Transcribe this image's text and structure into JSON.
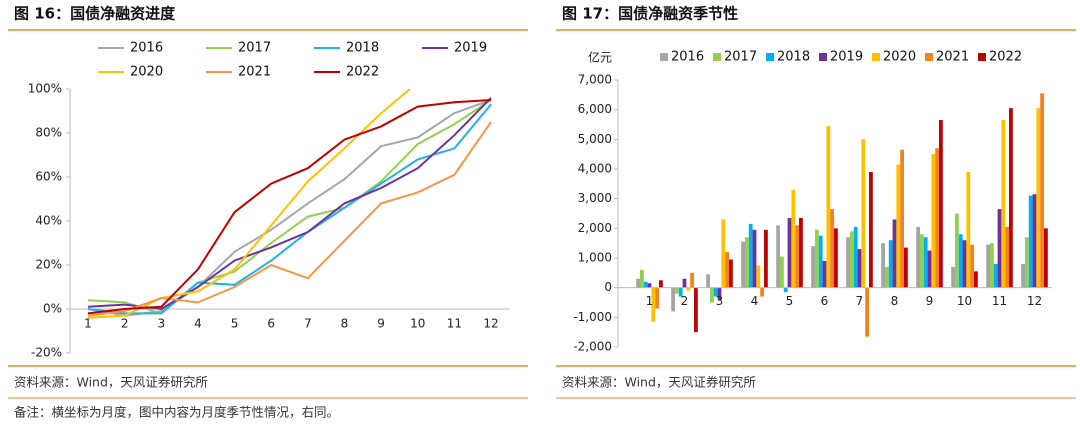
{
  "chart_data": [
    {
      "type": "line",
      "title": "图 16：国债净融资进度",
      "source": "资料来源：Wind，天风证券研究所",
      "categories": [
        "1",
        "2",
        "3",
        "4",
        "5",
        "6",
        "7",
        "8",
        "9",
        "10",
        "11",
        "12"
      ],
      "ylim": [
        -20,
        100
      ],
      "yticks": [
        {
          "value": -20,
          "label": "-20%"
        },
        {
          "value": 0,
          "label": "0%"
        },
        {
          "value": 20,
          "label": "20%"
        },
        {
          "value": 40,
          "label": "40%"
        },
        {
          "value": 60,
          "label": "60%"
        },
        {
          "value": 80,
          "label": "80%"
        },
        {
          "value": 100,
          "label": "100%"
        }
      ],
      "grid": false,
      "series": [
        {
          "name": "2016",
          "color": "#a6a6a6",
          "values": [
            0,
            -3,
            -1,
            10,
            26,
            36,
            48,
            59,
            74,
            78,
            89,
            95
          ]
        },
        {
          "name": "2017",
          "color": "#92d050",
          "values": [
            4,
            3,
            -2,
            12,
            17,
            30,
            42,
            46,
            58,
            75,
            84,
            95
          ]
        },
        {
          "name": "2018",
          "color": "#1fb3e8",
          "values": [
            0,
            -2,
            -2,
            12,
            11,
            22,
            35,
            46,
            57,
            68,
            73,
            93
          ]
        },
        {
          "name": "2019",
          "color": "#7030a0",
          "values": [
            1,
            2,
            0,
            10,
            22,
            28,
            35,
            48,
            55,
            64,
            79,
            96
          ]
        },
        {
          "name": "2020",
          "color": "#ffc000",
          "values": [
            -4,
            -3,
            5,
            8,
            18,
            38,
            58,
            73,
            89,
            103,
            null,
            null
          ]
        },
        {
          "name": "2021",
          "color": "#f79646",
          "values": [
            -3,
            -1,
            5,
            3,
            10,
            20,
            14,
            31,
            48,
            53,
            61,
            85
          ]
        },
        {
          "name": "2022",
          "color": "#c00000",
          "values": [
            -2,
            0,
            1,
            18,
            44,
            57,
            64,
            77,
            83,
            92,
            94,
            95
          ]
        }
      ]
    },
    {
      "type": "bar",
      "title": "图 17：国债净融资季节性",
      "source": "资料来源：Wind，天风证券研究所",
      "y_label": "亿元",
      "categories": [
        "1",
        "2",
        "3",
        "4",
        "5",
        "6",
        "7",
        "8",
        "9",
        "10",
        "11",
        "12"
      ],
      "ylim": [
        -2000,
        7000
      ],
      "yticks": [
        {
          "value": -2000,
          "label": "-2,000"
        },
        {
          "value": -1000,
          "label": "-1,000"
        },
        0,
        {
          "value": 1000,
          "label": "1,000"
        },
        {
          "value": 2000,
          "label": "2,000"
        },
        {
          "value": 3000,
          "label": "3,000"
        },
        {
          "value": 4000,
          "label": "4,000"
        },
        {
          "value": 5000,
          "label": "5,000"
        },
        {
          "value": 6000,
          "label": "6,000"
        },
        {
          "value": 7000,
          "label": "7,000"
        }
      ],
      "grid": false,
      "series": [
        {
          "name": "2016",
          "color": "#a5a5a5",
          "values": [
            300,
            -800,
            450,
            1550,
            2100,
            1400,
            1700,
            1500,
            2050,
            700,
            1450,
            800
          ]
        },
        {
          "name": "2017",
          "color": "#92d050",
          "values": [
            600,
            -200,
            -500,
            1700,
            1050,
            1950,
            1900,
            700,
            1800,
            2500,
            1500,
            1700
          ]
        },
        {
          "name": "2018",
          "color": "#00b0f0",
          "values": [
            200,
            -300,
            -300,
            2150,
            -150,
            1750,
            2050,
            1600,
            1700,
            1800,
            800,
            3100
          ]
        },
        {
          "name": "2019",
          "color": "#7030a0",
          "values": [
            150,
            300,
            -400,
            1950,
            2350,
            900,
            1300,
            2300,
            1250,
            1600,
            2650,
            3150
          ]
        },
        {
          "name": "2020",
          "color": "#ffc000",
          "values": [
            -1150,
            -100,
            2300,
            750,
            3300,
            5450,
            5000,
            4150,
            4500,
            3900,
            5650,
            6050
          ]
        },
        {
          "name": "2021",
          "color": "#f58220",
          "values": [
            -700,
            500,
            1200,
            -300,
            2100,
            2650,
            -1650,
            4650,
            4700,
            1450,
            2050,
            6550
          ]
        },
        {
          "name": "2022",
          "color": "#c00000",
          "values": [
            250,
            -1500,
            950,
            1950,
            2350,
            2000,
            3900,
            1350,
            5650,
            550,
            6050,
            2000
          ]
        }
      ]
    }
  ],
  "note": "备注：横坐标为月度，图中内容为月度季节性情况，右同。"
}
